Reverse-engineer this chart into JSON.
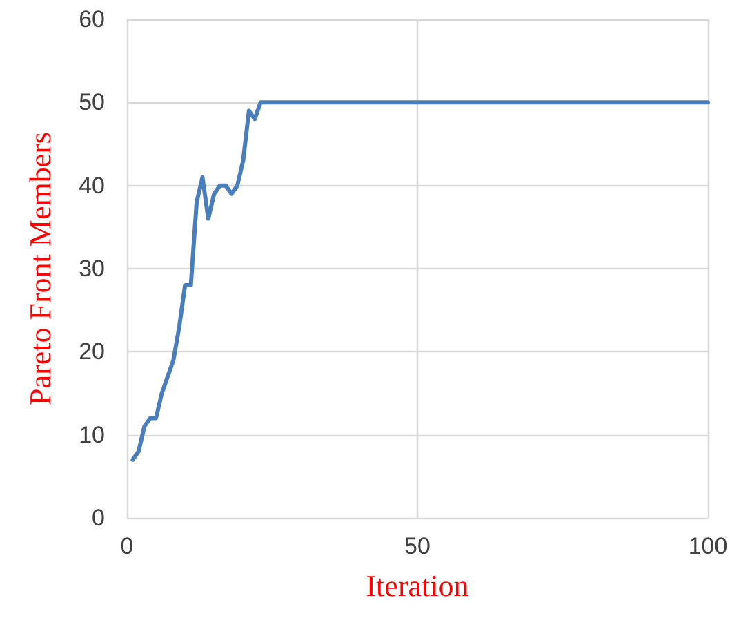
{
  "chart_data": {
    "type": "line",
    "xlabel": "Iteration",
    "ylabel": "Pareto Front Members",
    "x": [
      1,
      2,
      3,
      4,
      5,
      6,
      7,
      8,
      9,
      10,
      11,
      12,
      13,
      14,
      15,
      16,
      17,
      18,
      19,
      20,
      21,
      22,
      23,
      100
    ],
    "series": [
      {
        "color": "#4a7ebb",
        "values": [
          7,
          8,
          11,
          12,
          12,
          15,
          17,
          19,
          23,
          28,
          28,
          38,
          41,
          36,
          39,
          40,
          40,
          39,
          40,
          43,
          49,
          48,
          50,
          50
        ]
      }
    ],
    "xlim": [
      0,
      100
    ],
    "xticks": [
      0,
      50,
      100
    ],
    "ylim": [
      0,
      60
    ],
    "yticks": [
      0,
      10,
      20,
      30,
      40,
      50,
      60
    ],
    "grid": true,
    "marker": "none",
    "line_style": "solid"
  }
}
